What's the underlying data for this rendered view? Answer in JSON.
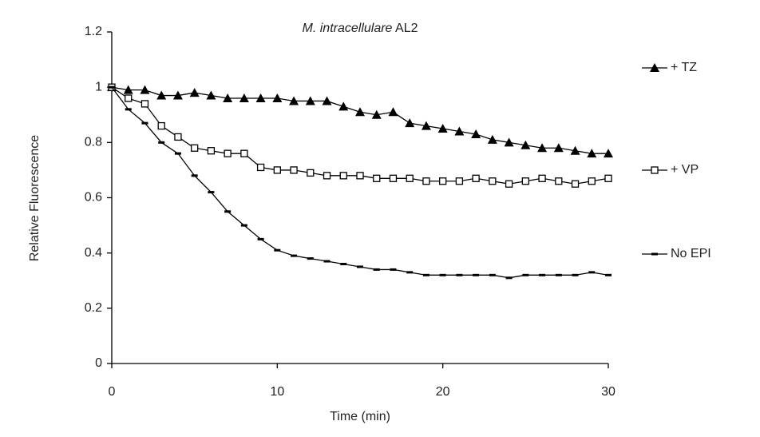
{
  "chart_data": {
    "type": "line",
    "title": [
      "M. intracellulare",
      "AL2"
    ],
    "x_label": "Time (min)",
    "y_label": "Relative Fluorescence",
    "x": [
      0,
      1,
      2,
      3,
      4,
      5,
      6,
      7,
      8,
      9,
      10,
      11,
      12,
      13,
      14,
      15,
      16,
      17,
      18,
      19,
      20,
      21,
      22,
      23,
      24,
      25,
      26,
      27,
      28,
      29,
      30
    ],
    "series": [
      {
        "name": "+ TZ",
        "color": "#000000",
        "marker": "triangle",
        "values": [
          1,
          0.99,
          0.99,
          0.97,
          0.97,
          0.98,
          0.97,
          0.96,
          0.96,
          0.96,
          0.96,
          0.95,
          0.95,
          0.95,
          0.93,
          0.91,
          0.9,
          0.91,
          0.87,
          0.86,
          0.85,
          0.84,
          0.83,
          0.81,
          0.8,
          0.79,
          0.78,
          0.78,
          0.77,
          0.76,
          0.76
        ]
      },
      {
        "name": "+ VP",
        "color": "#000000",
        "marker": "square",
        "values": [
          1,
          0.96,
          0.94,
          0.86,
          0.82,
          0.78,
          0.77,
          0.76,
          0.76,
          0.71,
          0.7,
          0.7,
          0.69,
          0.68,
          0.68,
          0.68,
          0.67,
          0.67,
          0.67,
          0.66,
          0.66,
          0.66,
          0.67,
          0.66,
          0.65,
          0.66,
          0.67,
          0.66,
          0.65,
          0.66,
          0.67
        ]
      },
      {
        "name": "No EPI",
        "color": "#000000",
        "marker": "dash",
        "values": [
          1,
          0.92,
          0.87,
          0.8,
          0.76,
          0.68,
          0.62,
          0.55,
          0.5,
          0.45,
          0.41,
          0.39,
          0.38,
          0.37,
          0.36,
          0.35,
          0.34,
          0.34,
          0.33,
          0.32,
          0.32,
          0.32,
          0.32,
          0.32,
          0.31,
          0.32,
          0.32,
          0.32,
          0.32,
          0.33,
          0.32
        ]
      }
    ],
    "xlim": [
      0,
      30
    ],
    "xticks": [
      0,
      10,
      20,
      30
    ],
    "ylim": [
      0,
      1.2
    ],
    "yticks": [
      0,
      0.2,
      0.4,
      0.6,
      0.8,
      1,
      1.2
    ],
    "grid": false,
    "legend": "right"
  }
}
